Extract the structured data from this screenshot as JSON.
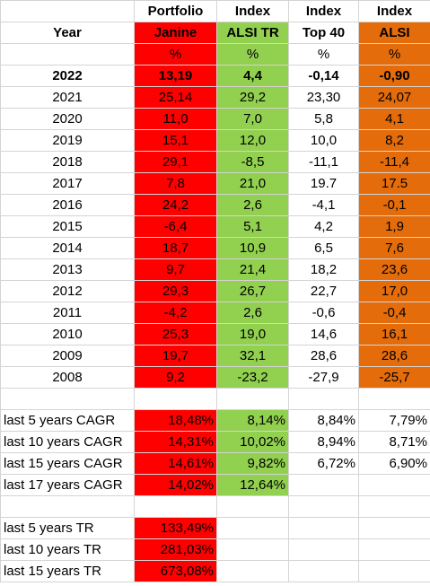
{
  "header": {
    "row1": [
      "",
      "Portfolio",
      "Index",
      "Index",
      "Index"
    ],
    "row2": [
      "Year",
      "Janine",
      "ALSI TR",
      "Top 40",
      "ALSI"
    ],
    "row3": [
      "",
      "%",
      "%",
      "%",
      "%"
    ]
  },
  "years": [
    {
      "year": "2022",
      "p": "13,19",
      "alsi_tr": "4,4",
      "top40": "-0,14",
      "alsi": "-0,90",
      "bold": true
    },
    {
      "year": "2021",
      "p": "25,14",
      "alsi_tr": "29,2",
      "top40": "23,30",
      "alsi": "24,07"
    },
    {
      "year": "2020",
      "p": "11,0",
      "alsi_tr": "7,0",
      "top40": "5,8",
      "alsi": "4,1"
    },
    {
      "year": "2019",
      "p": "15,1",
      "alsi_tr": "12,0",
      "top40": "10,0",
      "alsi": "8,2"
    },
    {
      "year": "2018",
      "p": "29,1",
      "alsi_tr": "-8,5",
      "top40": "-11,1",
      "alsi": "-11,4"
    },
    {
      "year": "2017",
      "p": "7,8",
      "alsi_tr": "21,0",
      "top40": "19.7",
      "alsi": "17.5"
    },
    {
      "year": "2016",
      "p": "24,2",
      "alsi_tr": "2,6",
      "top40": "-4,1",
      "alsi": "-0,1"
    },
    {
      "year": "2015",
      "p": "-6,4",
      "alsi_tr": "5,1",
      "top40": "4,2",
      "alsi": "1,9"
    },
    {
      "year": "2014",
      "p": "18,7",
      "alsi_tr": "10,9",
      "top40": "6,5",
      "alsi": "7,6"
    },
    {
      "year": "2013",
      "p": "9,7",
      "alsi_tr": "21,4",
      "top40": "18,2",
      "alsi": "23,6"
    },
    {
      "year": "2012",
      "p": "29,3",
      "alsi_tr": "26,7",
      "top40": "22,7",
      "alsi": "17,0"
    },
    {
      "year": "2011",
      "p": "-4,2",
      "alsi_tr": "2,6",
      "top40": "-0,6",
      "alsi": "-0,4"
    },
    {
      "year": "2010",
      "p": "25,3",
      "alsi_tr": "19,0",
      "top40": "14,6",
      "alsi": "16,1"
    },
    {
      "year": "2009",
      "p": "19,7",
      "alsi_tr": "32,1",
      "top40": "28,6",
      "alsi": "28,6"
    },
    {
      "year": "2008",
      "p": "9,2",
      "alsi_tr": "-23,2",
      "top40": "-27,9",
      "alsi": "-25,7"
    }
  ],
  "cagr": [
    {
      "label": "last 5 years CAGR",
      "p": "18,48%",
      "alsi_tr": "8,14%",
      "top40": "8,84%",
      "alsi": "7,79%"
    },
    {
      "label": "last 10 years CAGR",
      "p": "14,31%",
      "alsi_tr": "10,02%",
      "top40": "8,94%",
      "alsi": "8,71%"
    },
    {
      "label": "last 15 years CAGR",
      "p": "14,61%",
      "alsi_tr": "9,82%",
      "top40": "6,72%",
      "alsi": "6,90%"
    },
    {
      "label": "last 17 years CAGR",
      "p": "14,02%",
      "alsi_tr": "12,64%",
      "top40": "",
      "alsi": ""
    }
  ],
  "tr": [
    {
      "label": "last 5 years TR",
      "p": "133,49%"
    },
    {
      "label": "last 10 years TR",
      "p": "281,03%"
    },
    {
      "label": "last 15 years TR",
      "p": "673,08%"
    }
  ],
  "colors": {
    "portfolio": "#ff0000",
    "alsi_tr": "#92d050",
    "alsi": "#e46c0a"
  }
}
